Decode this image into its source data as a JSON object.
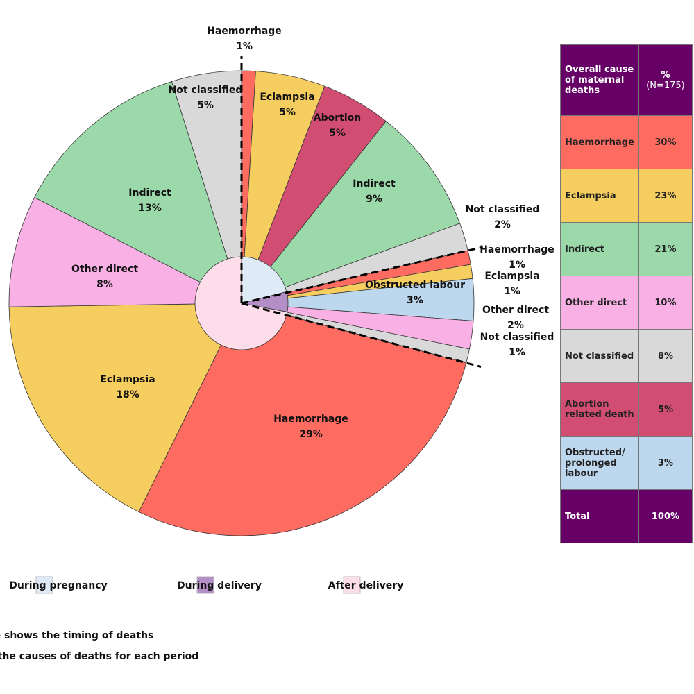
{
  "chart_data": {
    "type": "sunburst",
    "inner": {
      "categories": [
        "During pregnancy",
        "During delivery",
        "After delivery"
      ],
      "values": [
        21,
        7,
        72
      ],
      "colors": [
        "#deeaf6",
        "#b48ec6",
        "#fcdde9"
      ]
    },
    "outer": {
      "categories": [
        "Haemorrhage",
        "Eclampsia",
        "Abortion",
        "Indirect",
        "Not classified",
        "Haemorrhage",
        "Eclampsia",
        "Obstructed labour",
        "Other direct",
        "Not classified",
        "Haemorrhage",
        "Eclampsia",
        "Other direct",
        "Indirect",
        "Not classified"
      ],
      "values": [
        1,
        5,
        5,
        9,
        2,
        1,
        1,
        3,
        2,
        1,
        29,
        18,
        8,
        13,
        5
      ],
      "value_labels": [
        "1%",
        "5%",
        "5%",
        "9%",
        "2%",
        "1%",
        "1%",
        "3%",
        "2%",
        "1%",
        "29%",
        "18%",
        "8%",
        "13%",
        "5%"
      ],
      "group_sizes": [
        5,
        5,
        5
      ],
      "colors": [
        "#fe6b60",
        "#f6cd5f",
        "#d24d72",
        "#9bd9aa",
        "#d9d9d9",
        "#fe6b60",
        "#f6cd5f",
        "#bdd7ee",
        "#f8b0e5",
        "#d9d9d9",
        "#fe6b60",
        "#f6cd5f",
        "#f8b0e5",
        "#9bd9aa",
        "#d9d9d9"
      ]
    },
    "notes": [
      "The inner circle shows the timing of deaths",
      "The outer circle shows the causes of deaths for each period"
    ]
  },
  "table": {
    "header": [
      "Overall cause of maternal deaths",
      "%",
      "(N=175)"
    ],
    "header_color": "#660066",
    "rows": [
      [
        "Haemorrhage",
        "30%"
      ],
      [
        "Eclampsia",
        "23%"
      ],
      [
        "Indirect",
        "21%"
      ],
      [
        "Other direct",
        "10%"
      ],
      [
        "Not classified",
        "8%"
      ],
      [
        "Abortion related death",
        "5%"
      ],
      [
        "Obstructed/ prolonged labour",
        "3%"
      ],
      [
        "Total",
        "100%"
      ]
    ],
    "row_colors": [
      "#fe6b60",
      "#f6cd5f",
      "#9bd9aa",
      "#f8b0e5",
      "#d9d9d9",
      "#d24d72",
      "#bdd7ee",
      "#660066"
    ]
  }
}
